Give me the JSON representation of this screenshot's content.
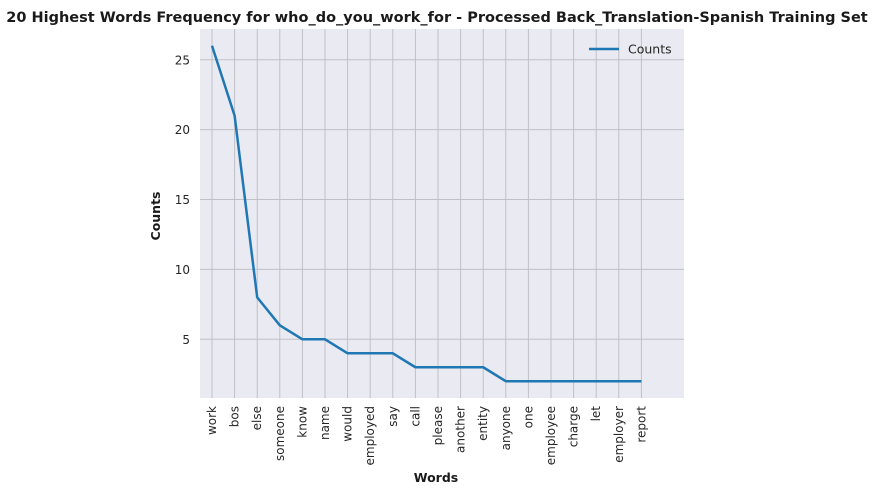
{
  "chart_data": {
    "type": "line",
    "title": "20 Highest Words Frequency for who_do_you_work_for - Processed Back_Translation-Spanish Training Set",
    "xlabel": "Words",
    "ylabel": "Counts",
    "categories": [
      "work",
      "bos",
      "else",
      "someone",
      "know",
      "name",
      "would",
      "employed",
      "say",
      "call",
      "please",
      "another",
      "entity",
      "anyone",
      "one",
      "employee",
      "charge",
      "let",
      "employer",
      "report"
    ],
    "series": [
      {
        "name": "Counts",
        "values": [
          26,
          21,
          8,
          6,
          5,
          5,
          4,
          4,
          4,
          3,
          3,
          3,
          3,
          2,
          2,
          2,
          2,
          2,
          2,
          2
        ],
        "color": "#1f77b4"
      }
    ],
    "yticks": [
      5,
      10,
      15,
      20,
      25
    ],
    "ylim": [
      0.8,
      27.2
    ],
    "grid": true,
    "legend": "top-right",
    "background": "#eaeaf2",
    "grid_color": "#c0c0c6"
  }
}
